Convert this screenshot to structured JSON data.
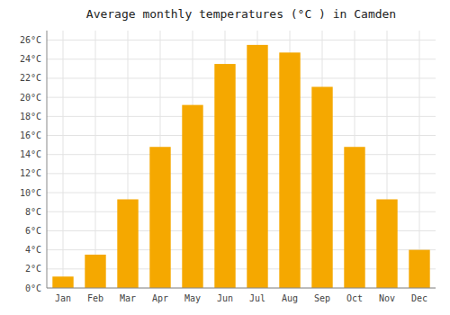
{
  "chart_data": {
    "type": "bar",
    "title": "Average monthly temperatures (°C ) in Camden",
    "categories": [
      "Jan",
      "Feb",
      "Mar",
      "Apr",
      "May",
      "Jun",
      "Jul",
      "Aug",
      "Sep",
      "Oct",
      "Nov",
      "Dec"
    ],
    "values": [
      1.2,
      3.5,
      9.3,
      14.8,
      19.2,
      23.5,
      25.5,
      24.7,
      21.1,
      14.8,
      9.3,
      4.0
    ],
    "color": "#F5A800",
    "ylim": [
      0,
      27
    ],
    "yticks": [
      {
        "value": 0,
        "label": "0°C"
      },
      {
        "value": 2,
        "label": "2°C"
      },
      {
        "value": 4,
        "label": "4°C"
      },
      {
        "value": 6,
        "label": "6°C"
      },
      {
        "value": 8,
        "label": "8°C"
      },
      {
        "value": 10,
        "label": "10°C"
      },
      {
        "value": 12,
        "label": "12°C"
      },
      {
        "value": 14,
        "label": "14°C"
      },
      {
        "value": 16,
        "label": "16°C"
      },
      {
        "value": 18,
        "label": "18°C"
      },
      {
        "value": 20,
        "label": "20°C"
      },
      {
        "value": 22,
        "label": "22°C"
      },
      {
        "value": 24,
        "label": "24°C"
      },
      {
        "value": 26,
        "label": "26°C"
      }
    ],
    "grid": true
  }
}
